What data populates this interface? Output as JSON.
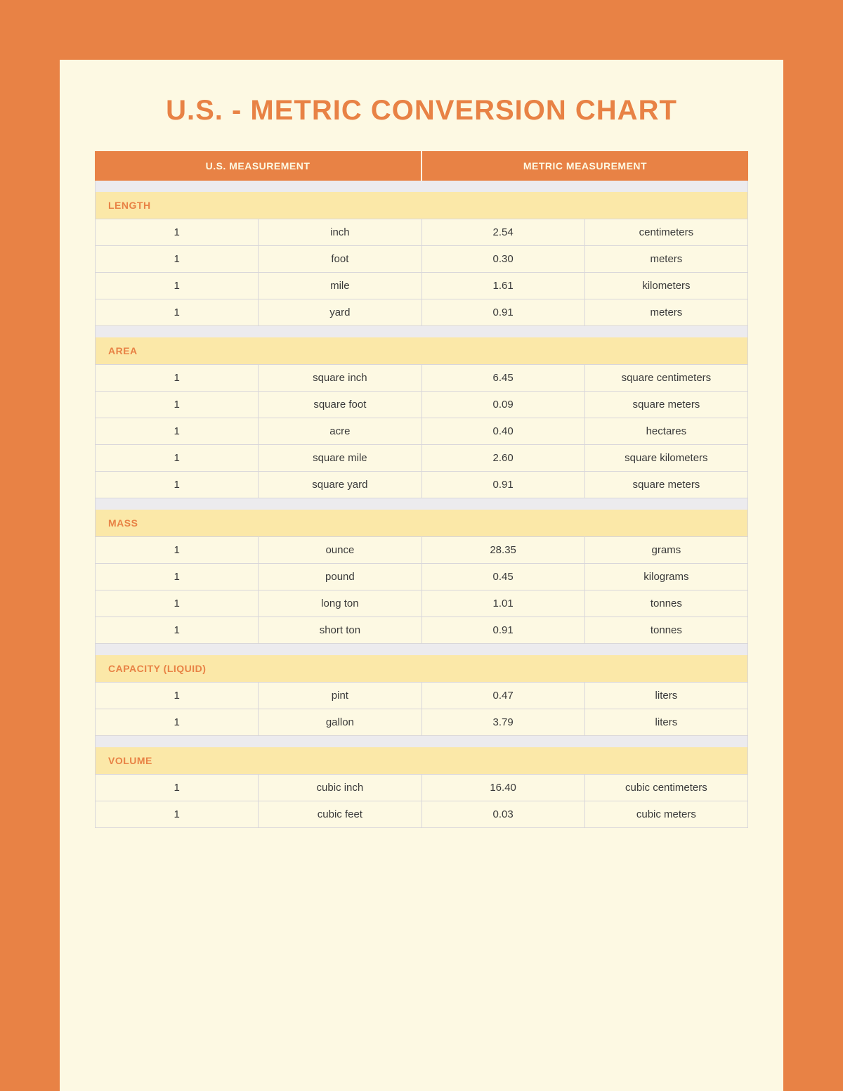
{
  "title": "U.S. - METRIC CONVERSION CHART",
  "headers": {
    "us": "U.S. MEASUREMENT",
    "metric": "METRIC MEASUREMENT"
  },
  "colors": {
    "page_bg": "#e88245",
    "card_bg": "#fdf9e3",
    "accent": "#e88245",
    "section_bg": "#fbe8a8",
    "spacer_bg": "#ecebee",
    "border": "#d8d6da",
    "text": "#3a3a3a"
  },
  "typography": {
    "title_fontsize": 40,
    "header_fontsize": 14,
    "section_fontsize": 14,
    "row_fontsize": 15
  },
  "sections": [
    {
      "name": "LENGTH",
      "rows": [
        {
          "us_qty": "1",
          "us_unit": "inch",
          "metric_qty": "2.54",
          "metric_unit": "centimeters"
        },
        {
          "us_qty": "1",
          "us_unit": "foot",
          "metric_qty": "0.30",
          "metric_unit": "meters"
        },
        {
          "us_qty": "1",
          "us_unit": "mile",
          "metric_qty": "1.61",
          "metric_unit": "kilometers"
        },
        {
          "us_qty": "1",
          "us_unit": "yard",
          "metric_qty": "0.91",
          "metric_unit": "meters"
        }
      ]
    },
    {
      "name": "AREA",
      "rows": [
        {
          "us_qty": "1",
          "us_unit": "square inch",
          "metric_qty": "6.45",
          "metric_unit": "square centimeters"
        },
        {
          "us_qty": "1",
          "us_unit": "square foot",
          "metric_qty": "0.09",
          "metric_unit": "square meters"
        },
        {
          "us_qty": "1",
          "us_unit": "acre",
          "metric_qty": "0.40",
          "metric_unit": "hectares"
        },
        {
          "us_qty": "1",
          "us_unit": "square mile",
          "metric_qty": "2.60",
          "metric_unit": "square kilometers"
        },
        {
          "us_qty": "1",
          "us_unit": "square yard",
          "metric_qty": "0.91",
          "metric_unit": "square meters"
        }
      ]
    },
    {
      "name": "MASS",
      "rows": [
        {
          "us_qty": "1",
          "us_unit": "ounce",
          "metric_qty": "28.35",
          "metric_unit": "grams"
        },
        {
          "us_qty": "1",
          "us_unit": "pound",
          "metric_qty": "0.45",
          "metric_unit": "kilograms"
        },
        {
          "us_qty": "1",
          "us_unit": "long ton",
          "metric_qty": "1.01",
          "metric_unit": "tonnes"
        },
        {
          "us_qty": "1",
          "us_unit": "short ton",
          "metric_qty": "0.91",
          "metric_unit": "tonnes"
        }
      ]
    },
    {
      "name": "CAPACITY (LIQUID)",
      "rows": [
        {
          "us_qty": "1",
          "us_unit": "pint",
          "metric_qty": "0.47",
          "metric_unit": "liters"
        },
        {
          "us_qty": "1",
          "us_unit": "gallon",
          "metric_qty": "3.79",
          "metric_unit": "liters"
        }
      ]
    },
    {
      "name": "VOLUME",
      "rows": [
        {
          "us_qty": "1",
          "us_unit": "cubic inch",
          "metric_qty": "16.40",
          "metric_unit": "cubic centimeters"
        },
        {
          "us_qty": "1",
          "us_unit": "cubic feet",
          "metric_qty": "0.03",
          "metric_unit": "cubic meters"
        }
      ]
    }
  ]
}
